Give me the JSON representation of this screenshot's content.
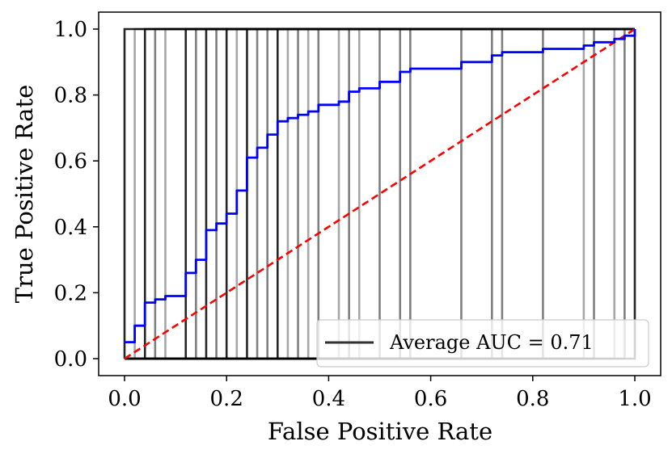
{
  "chart_data": {
    "type": "line",
    "xlabel": "False Positive Rate",
    "ylabel": "True Positive Rate",
    "xlim": [
      -0.05,
      1.05
    ],
    "ylim": [
      -0.05,
      1.05
    ],
    "xticks": [
      "0.0",
      "0.2",
      "0.4",
      "0.6",
      "0.8",
      "1.0"
    ],
    "yticks": [
      "0.0",
      "0.2",
      "0.4",
      "0.6",
      "0.8",
      "1.0"
    ],
    "grid": false,
    "legend": {
      "position": "lower-right",
      "entries": [
        {
          "label": "Average AUC = 0.71",
          "color": "#333333"
        }
      ]
    },
    "fold_step_curves": {
      "color": "#000000",
      "x": [
        0.0,
        0.02,
        0.04,
        0.06,
        0.08,
        0.12,
        0.14,
        0.16,
        0.18,
        0.2,
        0.22,
        0.24,
        0.26,
        0.28,
        0.3,
        0.32,
        0.34,
        0.36,
        0.38,
        0.42,
        0.44,
        0.46,
        0.5,
        0.54,
        0.56,
        0.66,
        0.72,
        0.74,
        0.82,
        0.9,
        0.92,
        0.96,
        0.98,
        1.0
      ],
      "shade": [
        0.85,
        0.35,
        0.85,
        0.5,
        0.35,
        0.85,
        0.5,
        0.85,
        0.5,
        0.85,
        0.35,
        0.85,
        0.5,
        0.5,
        0.85,
        0.35,
        0.5,
        0.35,
        0.5,
        0.35,
        0.5,
        0.35,
        0.5,
        0.5,
        0.5,
        0.5,
        0.5,
        0.5,
        0.5,
        0.35,
        0.5,
        0.35,
        0.5,
        0.85
      ]
    },
    "mean_roc": {
      "color": "#0000ff",
      "fpr": [
        0.0,
        0.02,
        0.02,
        0.04,
        0.04,
        0.06,
        0.06,
        0.08,
        0.08,
        0.12,
        0.12,
        0.14,
        0.14,
        0.16,
        0.16,
        0.18,
        0.18,
        0.2,
        0.2,
        0.22,
        0.22,
        0.24,
        0.24,
        0.26,
        0.26,
        0.28,
        0.28,
        0.3,
        0.3,
        0.32,
        0.32,
        0.34,
        0.34,
        0.36,
        0.36,
        0.38,
        0.38,
        0.42,
        0.42,
        0.44,
        0.44,
        0.46,
        0.46,
        0.5,
        0.5,
        0.54,
        0.54,
        0.56,
        0.56,
        0.66,
        0.66,
        0.72,
        0.72,
        0.74,
        0.74,
        0.82,
        0.82,
        0.9,
        0.9,
        0.92,
        0.92,
        0.96,
        0.96,
        0.98,
        0.98,
        1.0,
        1.0
      ],
      "tpr": [
        0.05,
        0.05,
        0.1,
        0.1,
        0.17,
        0.17,
        0.18,
        0.18,
        0.19,
        0.19,
        0.26,
        0.26,
        0.3,
        0.3,
        0.39,
        0.39,
        0.41,
        0.41,
        0.44,
        0.44,
        0.51,
        0.51,
        0.61,
        0.61,
        0.64,
        0.64,
        0.68,
        0.68,
        0.72,
        0.72,
        0.73,
        0.73,
        0.74,
        0.74,
        0.75,
        0.75,
        0.77,
        0.77,
        0.78,
        0.78,
        0.81,
        0.81,
        0.82,
        0.82,
        0.84,
        0.84,
        0.87,
        0.87,
        0.88,
        0.88,
        0.9,
        0.9,
        0.92,
        0.92,
        0.93,
        0.93,
        0.94,
        0.94,
        0.95,
        0.95,
        0.96,
        0.96,
        0.97,
        0.97,
        0.98,
        0.98,
        1.0
      ]
    },
    "chance_line": {
      "color": "#ff0000",
      "style": "dashed",
      "x": [
        0.0,
        1.0
      ],
      "y": [
        0.0,
        1.0
      ]
    }
  }
}
